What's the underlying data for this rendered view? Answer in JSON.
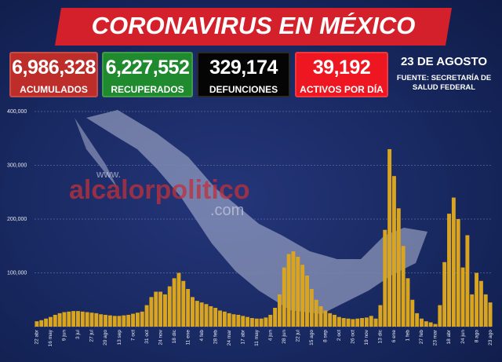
{
  "header": {
    "title": "CORONAVIRUS EN MÉXICO"
  },
  "stats": [
    {
      "value": "6,986,328",
      "label": "ACUMULADOS"
    },
    {
      "value": "6,227,552",
      "label": "RECUPERADOS"
    },
    {
      "value": "329,174",
      "label": "DEFUNCIONES"
    },
    {
      "value": "39,192",
      "label": "ACTIVOS POR DÍA"
    }
  ],
  "date": "23 DE AGOSTO",
  "source": [
    "FUENTE: SECRETARÍA DE",
    "SALUD FEDERAL"
  ],
  "watermark": [
    "www.",
    "alcalorpolitico",
    ".com"
  ],
  "chart_data": {
    "type": "bar",
    "color": "#d9a521",
    "grid": true,
    "ylim": [
      0,
      400000
    ],
    "yticks": [
      0,
      {
        "value": 100000,
        "label": "100,000"
      },
      {
        "value": 200000,
        "label": "200,000"
      },
      {
        "value": 300000,
        "label": "300,000"
      },
      {
        "value": 400000,
        "label": "400,000"
      }
    ],
    "categories": [
      "22 abr",
      null,
      null,
      "16 may",
      null,
      null,
      "9 jun",
      null,
      null,
      "3 jul",
      null,
      null,
      "27 jul",
      null,
      null,
      "20 ago",
      null,
      null,
      "13 sep",
      null,
      null,
      "7 oct",
      null,
      null,
      "31 oct",
      null,
      null,
      "24 nov",
      null,
      null,
      "18 dic",
      null,
      null,
      "11 ene",
      null,
      null,
      "4 feb",
      null,
      null,
      "28 feb",
      null,
      null,
      "24 mar",
      null,
      null,
      "17 abr",
      null,
      null,
      "11 may",
      null,
      null,
      "4 jun",
      null,
      null,
      "28 jun",
      null,
      null,
      "22 jul",
      null,
      null,
      "15 ago",
      null,
      null,
      "8 sep",
      null,
      null,
      "2 oct",
      null,
      null,
      "26 oct",
      null,
      null,
      "19 nov",
      null,
      null,
      "13 dic",
      null,
      null,
      "6 ene",
      null,
      null,
      "1 feb",
      null,
      null,
      "27 feb",
      null,
      null,
      "23 mar",
      null,
      null,
      "18 abr",
      null,
      null,
      "24 jun",
      null,
      null,
      "8 ago",
      null,
      null,
      "23 ago"
    ],
    "values": [
      10000,
      12000,
      15000,
      18000,
      22000,
      25000,
      27000,
      28000,
      29000,
      29000,
      28000,
      27000,
      26000,
      25000,
      23000,
      22000,
      21000,
      20000,
      20000,
      21000,
      22000,
      24000,
      26000,
      28000,
      40000,
      55000,
      65000,
      65000,
      60000,
      75000,
      90000,
      100000,
      85000,
      70000,
      55000,
      48000,
      45000,
      42000,
      38000,
      35000,
      30000,
      28000,
      25000,
      23000,
      22000,
      20000,
      18000,
      16000,
      15000,
      15000,
      17000,
      22000,
      35000,
      60000,
      110000,
      135000,
      140000,
      130000,
      115000,
      95000,
      70000,
      50000,
      38000,
      30000,
      25000,
      22000,
      18000,
      16000,
      15000,
      14000,
      15000,
      16000,
      17000,
      20000,
      15000,
      40000,
      180000,
      330000,
      280000,
      220000,
      150000,
      90000,
      50000,
      25000,
      15000,
      10000,
      8000,
      5000,
      40000,
      120000,
      210000,
      240000,
      200000,
      110000,
      170000,
      60000,
      100000,
      85000,
      60000,
      45000
    ]
  }
}
